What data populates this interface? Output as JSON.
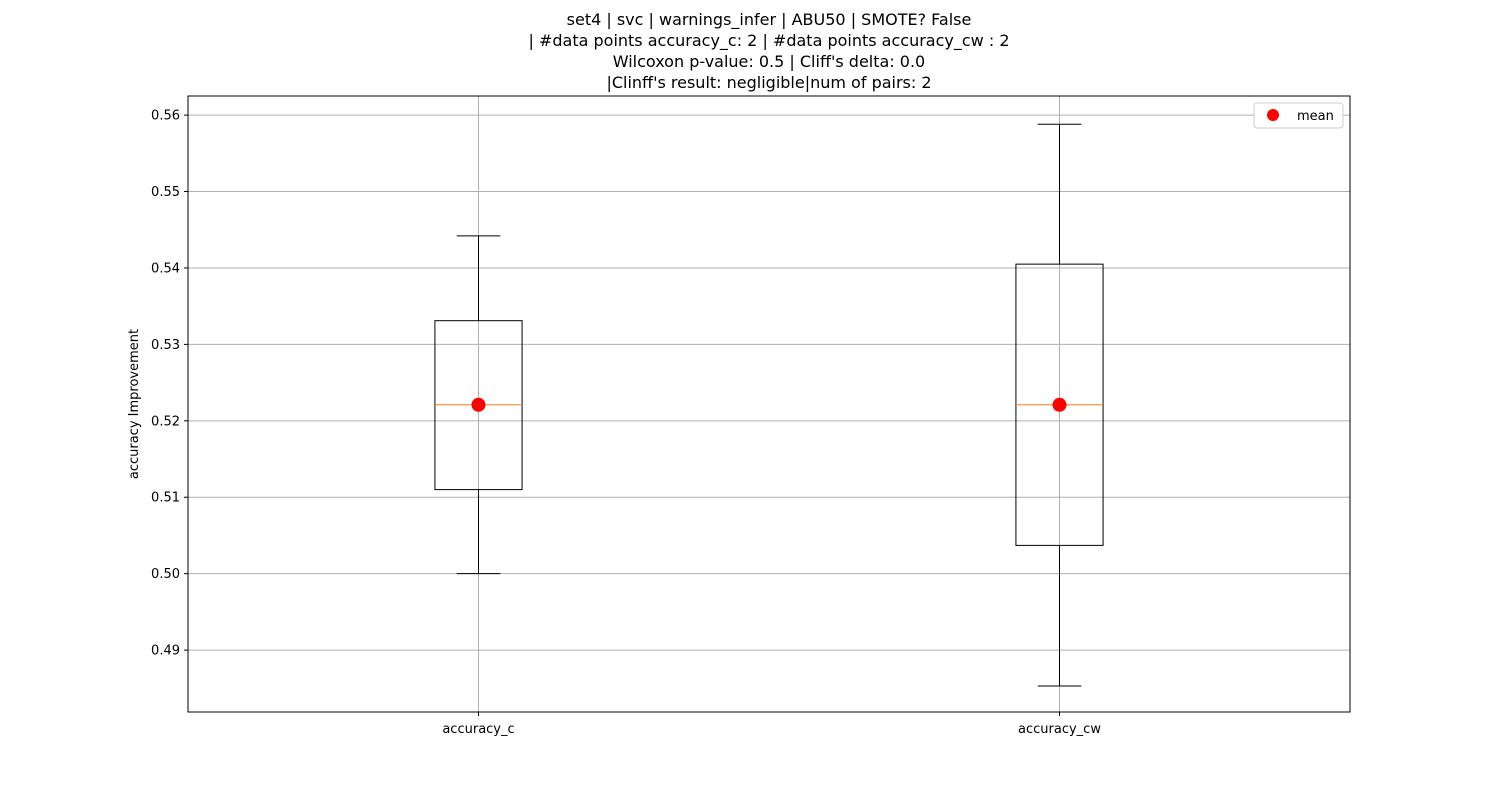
{
  "chart_data": {
    "type": "box",
    "title_lines": [
      "set4 | svc | warnings_infer | ABU50 | SMOTE? False",
      "| #data points accuracy_c: 2 | #data points accuracy_cw : 2",
      "Wilcoxon p-value: 0.5 | Cliff's delta: 0.0",
      "|Clinff's result: negligible|num of pairs: 2"
    ],
    "xlabel": "",
    "ylabel": "accuracy Improvement",
    "categories": [
      "accuracy_c",
      "accuracy_cw"
    ],
    "boxes": [
      {
        "name": "accuracy_c",
        "whisker_low": 0.5,
        "q1": 0.511,
        "median": 0.5221,
        "q3": 0.5331,
        "whisker_high": 0.5442,
        "mean": 0.5221
      },
      {
        "name": "accuracy_cw",
        "whisker_low": 0.4853,
        "q1": 0.5037,
        "median": 0.5221,
        "q3": 0.5405,
        "whisker_high": 0.5588,
        "mean": 0.5221
      }
    ],
    "ylim": [
      0.4819,
      0.5625
    ],
    "yticks": [
      0.49,
      0.5,
      0.51,
      0.52,
      0.53,
      0.54,
      0.55,
      0.56
    ],
    "ytick_labels": [
      "0.49",
      "0.50",
      "0.51",
      "0.52",
      "0.53",
      "0.54",
      "0.55",
      "0.56"
    ],
    "grid": true,
    "legend": {
      "position": "top-right",
      "entries": [
        {
          "label": "mean",
          "marker": "circle",
          "color": "#ff0000"
        }
      ]
    },
    "colors": {
      "box": "#000000",
      "median": "#ff7f0e",
      "mean": "#ff0000",
      "grid": "#b0b0b0"
    }
  }
}
